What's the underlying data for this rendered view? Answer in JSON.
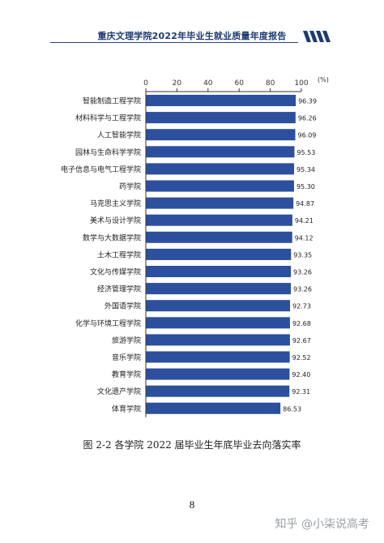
{
  "header": {
    "title": "重庆文理学院2022年毕业生就业质量年度报告"
  },
  "caption": "图 2-2 各学院 2022 届毕业生年底毕业去向落实率",
  "page_number": "8",
  "watermark": "知乎 @小柒说高考",
  "colors": {
    "bar": "#2c4f9e",
    "header": "#1e3b70",
    "axis": "#333333"
  },
  "chart_data": {
    "type": "bar",
    "orientation": "horizontal",
    "unit_label": "(%)",
    "xlim": [
      0,
      100
    ],
    "x_ticks": [
      0,
      20,
      40,
      60,
      80,
      100
    ],
    "categories": [
      "智能制造工程学院",
      "材料科学与工程学院",
      "人工智能学院",
      "园林与生命科学学院",
      "电子信息与电气工程学院",
      "药学院",
      "马克思主义学院",
      "美术与设计学院",
      "数学与大数据学院",
      "土木工程学院",
      "文化与传媒学院",
      "经济管理学院",
      "外国语学院",
      "化学与环境工程学院",
      "旅游学院",
      "音乐学院",
      "教育学院",
      "文化遗产学院",
      "体育学院"
    ],
    "values": [
      96.39,
      96.26,
      96.09,
      95.53,
      95.34,
      95.3,
      94.87,
      94.21,
      94.12,
      93.35,
      93.26,
      93.26,
      92.73,
      92.68,
      92.67,
      92.52,
      92.4,
      92.31,
      86.53
    ],
    "value_labels": [
      "96.39",
      "96.26",
      "96.09",
      "95.53",
      "95.34",
      "95.30",
      "94.87",
      "94.21",
      "94.12",
      "93.35",
      "93.26",
      "93.26",
      "92.73",
      "92.68",
      "92.67",
      "92.52",
      "92.40",
      "92.31",
      "86.53"
    ]
  }
}
